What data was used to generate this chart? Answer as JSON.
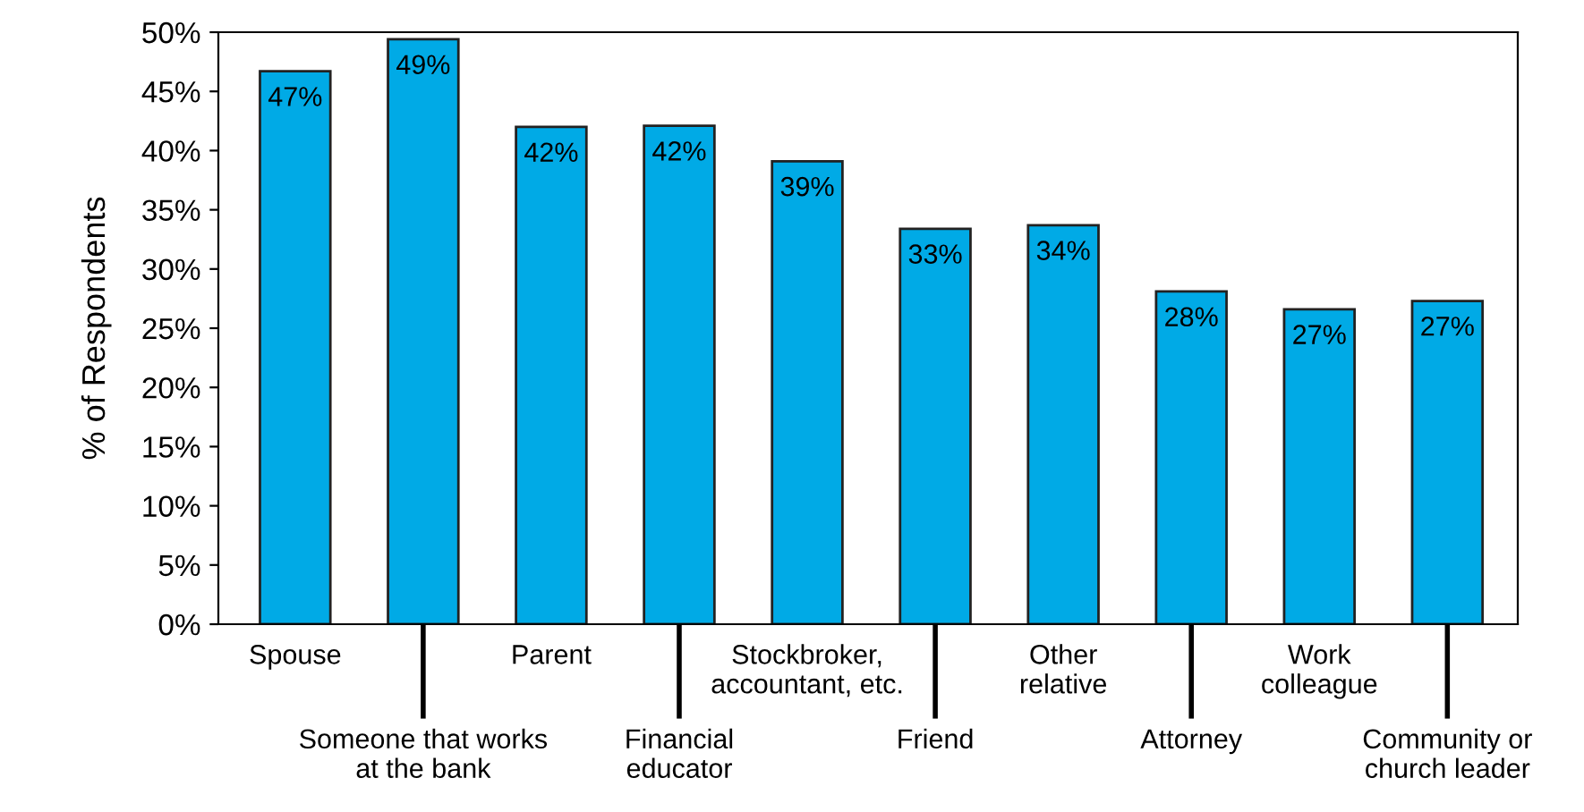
{
  "chart_data": {
    "type": "bar",
    "ylabel": "% of Respondents",
    "categories": [
      "Spouse",
      "Someone that works\nat the bank",
      "Parent",
      "Financial\neducator",
      "Stockbroker,\naccountant, etc.",
      "Friend",
      "Other\nrelative",
      "Attorney",
      "Work\ncolleague",
      "Community or\nchurch leader"
    ],
    "values": [
      46.7,
      49.4,
      42.0,
      42.1,
      39.1,
      33.4,
      33.7,
      28.1,
      26.6,
      27.3
    ],
    "value_labels": [
      "47%",
      "49%",
      "42%",
      "42%",
      "39%",
      "33%",
      "34%",
      "28%",
      "27%",
      "27%"
    ],
    "color": "#00aae6",
    "ylim": [
      0,
      50
    ],
    "yticks": [
      {
        "value": 0,
        "label": "0%"
      },
      {
        "value": 5,
        "label": "5%"
      },
      {
        "value": 10,
        "label": "10%"
      },
      {
        "value": 15,
        "label": "15%"
      },
      {
        "value": 20,
        "label": "20%"
      },
      {
        "value": 25,
        "label": "25%"
      },
      {
        "value": 30,
        "label": "30%"
      },
      {
        "value": 35,
        "label": "35%"
      },
      {
        "value": 40,
        "label": "40%"
      },
      {
        "value": 45,
        "label": "45%"
      },
      {
        "value": 50,
        "label": "50%"
      }
    ],
    "grid": false,
    "legend": false
  }
}
